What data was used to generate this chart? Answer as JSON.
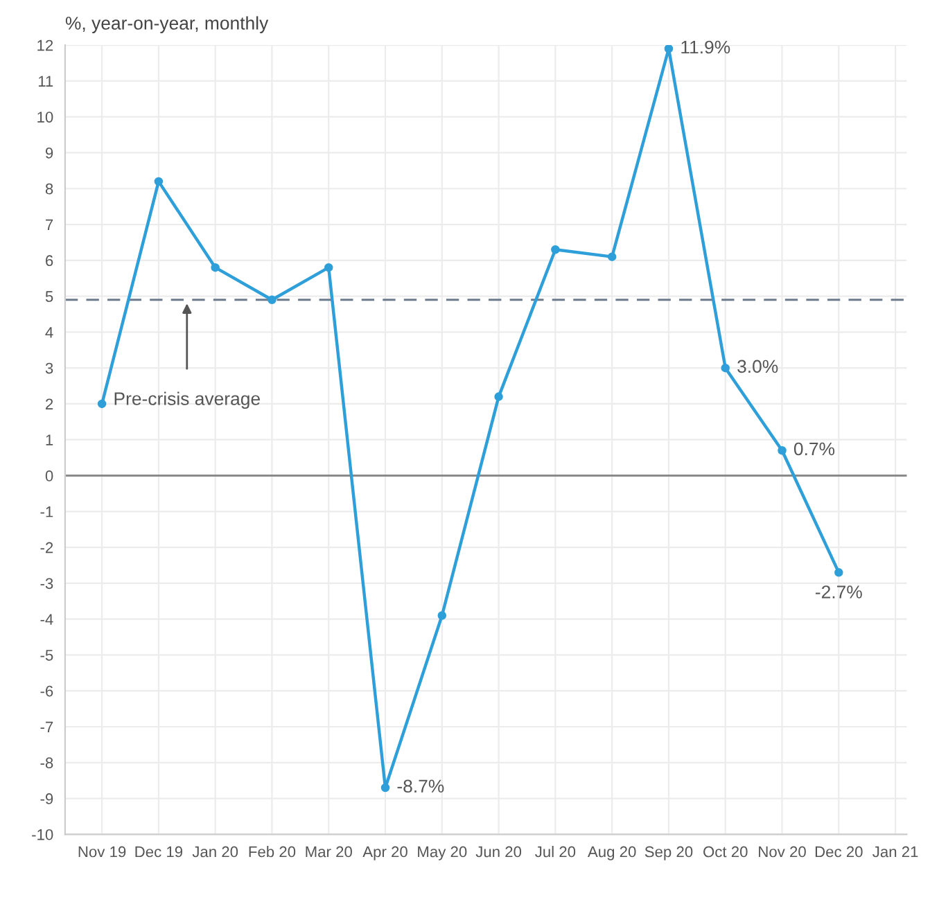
{
  "chart_data": {
    "type": "line",
    "ylabel": "%, year-on-year, monthly",
    "categories": [
      "Nov 19",
      "Dec 19",
      "Jan 20",
      "Feb 20",
      "Mar 20",
      "Apr 20",
      "May 20",
      "Jun 20",
      "Jul 20",
      "Aug 20",
      "Sep 20",
      "Oct 20",
      "Nov 20",
      "Dec 20",
      "Jan 21"
    ],
    "series": [
      {
        "color": "#2e9fd8",
        "values": [
          2.0,
          8.2,
          5.8,
          4.9,
          5.8,
          -8.7,
          -3.9,
          2.2,
          6.3,
          6.1,
          11.9,
          3.0,
          0.7,
          -2.7,
          null
        ],
        "value_labels": [
          null,
          null,
          null,
          null,
          null,
          "-8.7%",
          null,
          null,
          null,
          null,
          "11.9%",
          "3.0%",
          "0.7%",
          "-2.7%",
          null
        ]
      }
    ],
    "ylim": [
      -10,
      12
    ],
    "yticks": [
      -10,
      -9,
      -8,
      -7,
      -6,
      -5,
      -4,
      -3,
      -2,
      -1,
      0,
      1,
      2,
      3,
      4,
      5,
      6,
      7,
      8,
      9,
      10,
      11,
      12
    ],
    "ref_lines": [
      {
        "axis": "y",
        "value": 4.9,
        "label": "Pre-crisis average",
        "color": "#6b7b8c",
        "line_style": "dashed"
      },
      {
        "axis": "y",
        "value": 0,
        "color": "#8a8a8a",
        "line_style": "solid"
      }
    ],
    "grid": true,
    "marker": "circle",
    "line_style": "solid"
  }
}
